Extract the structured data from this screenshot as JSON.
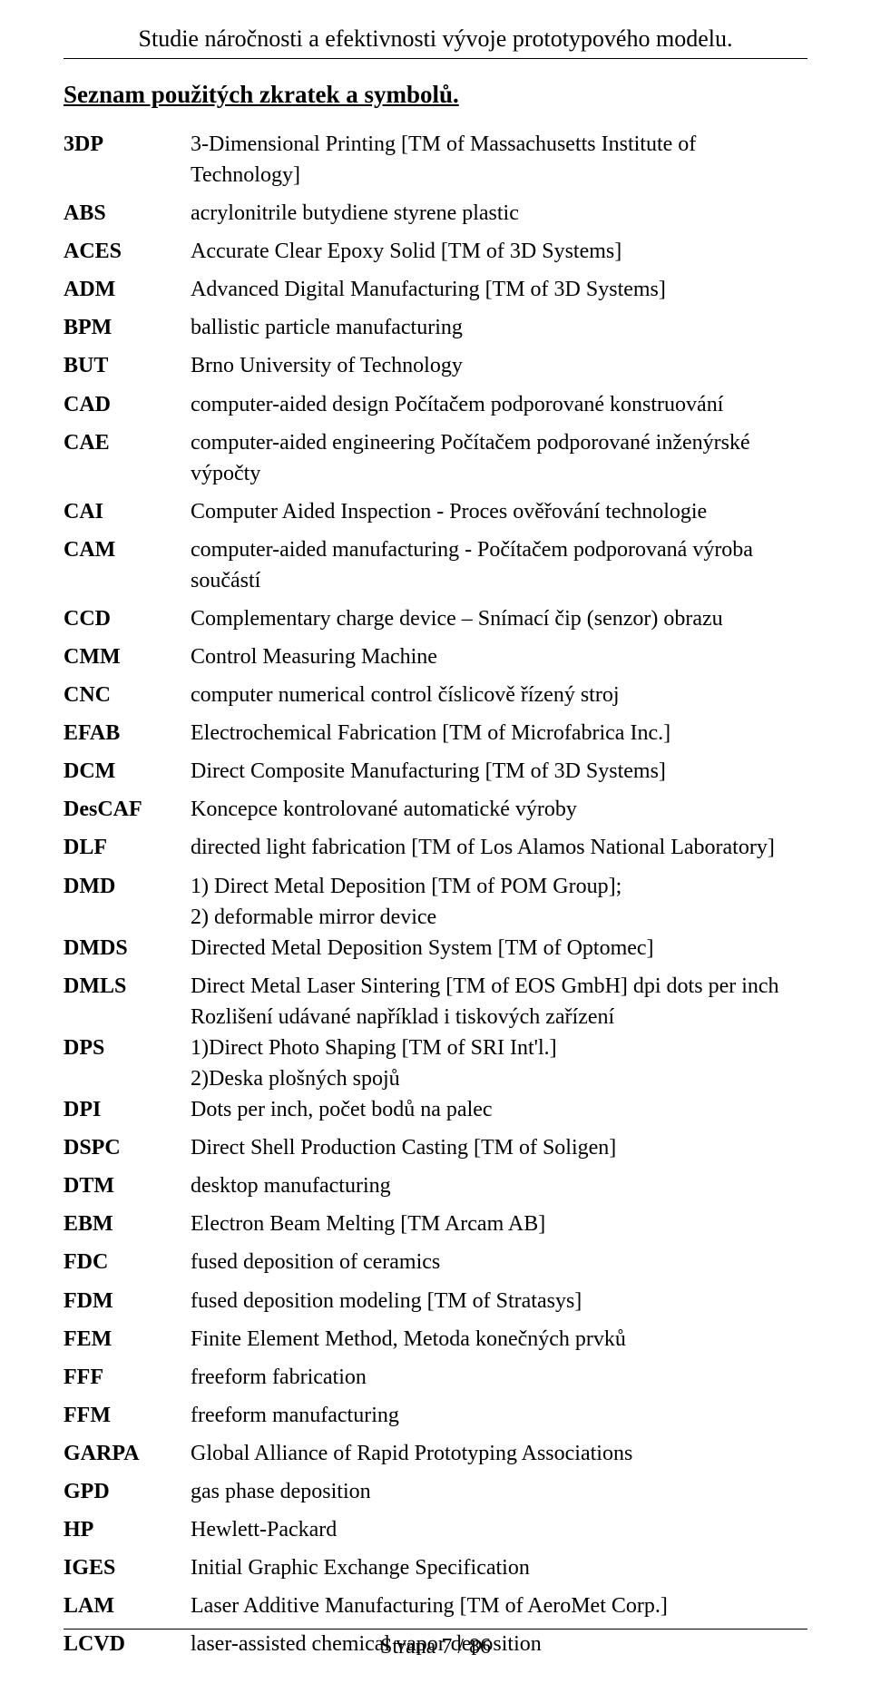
{
  "header": {
    "title": "Studie náročnosti a efektivnosti vývoje prototypového modelu."
  },
  "section": {
    "heading": "Seznam použitých zkratek a symbolů."
  },
  "abbreviations": [
    {
      "code": "3DP",
      "def": "3-Dimensional Printing [TM of Massachusetts Institute of Technology]",
      "extra_space": true
    },
    {
      "code": "ABS",
      "def": "acrylonitrile butydiene styrene plastic",
      "extra_space": true
    },
    {
      "code": "ACES",
      "def": "Accurate Clear Epoxy Solid [TM of 3D Systems]",
      "extra_space": true
    },
    {
      "code": "ADM",
      "def": "Advanced Digital Manufacturing [TM of 3D Systems]",
      "extra_space": true
    },
    {
      "code": "BPM",
      "def": "ballistic particle manufacturing",
      "extra_space": true
    },
    {
      "code": "BUT",
      "def": "Brno University of Technology",
      "extra_space": true
    },
    {
      "code": "CAD",
      "def": "computer-aided design Počítačem podporované konstruování",
      "extra_space": true
    },
    {
      "code": "CAE",
      "def": "computer-aided engineering Počítačem podporované inženýrské výpočty",
      "extra_space": true
    },
    {
      "code": "CAI",
      "def": "Computer Aided Inspection - Proces ověřování technologie",
      "extra_space": true
    },
    {
      "code": "CAM",
      "def": "computer-aided manufacturing - Počítačem podporovaná výroba součástí",
      "extra_space": true
    },
    {
      "code": "CCD",
      "def": "Complementary charge device – Snímací čip (senzor) obrazu",
      "extra_space": true
    },
    {
      "code": "CMM",
      "def": "Control Measuring Machine",
      "extra_space": true
    },
    {
      "code": "CNC",
      "def": "computer numerical control   číslicově řízený stroj",
      "extra_space": true
    },
    {
      "code": "EFAB",
      "def": "Electrochemical Fabrication [TM of Microfabrica Inc.]",
      "extra_space": true
    },
    {
      "code": "DCM",
      "def": "Direct Composite Manufacturing [TM of 3D Systems]",
      "extra_space": true
    },
    {
      "code": "DesCAF",
      "def": "Koncepce kontrolované automatické výroby",
      "extra_space": true
    },
    {
      "code": "DLF",
      "def": "directed light fabrication [TM of Los Alamos National Laboratory]",
      "extra_space": true
    },
    {
      "code": "DMD",
      "def": "1) Direct Metal Deposition [TM of POM Group];\n2) deformable mirror device",
      "extra_space": false
    },
    {
      "code": "DMDS",
      "def": "Directed Metal Deposition System [TM of Optomec]",
      "extra_space": true
    },
    {
      "code": "DMLS",
      "def": "Direct Metal Laser Sintering [TM of EOS GmbH] dpi dots per inch\nRozlišení udávané například i tiskových zařízení",
      "extra_space": false
    },
    {
      "code": "DPS",
      "def": "1)Direct Photo Shaping [TM of SRI Int'l.]\n2)Deska plošných spojů",
      "extra_space": false
    },
    {
      "code": "DPI",
      "def": "Dots per inch,  počet bodů na palec",
      "extra_space": true
    },
    {
      "code": "DSPC",
      "def": "Direct Shell Production Casting [TM of Soligen]",
      "extra_space": true
    },
    {
      "code": "DTM",
      "def": "desktop manufacturing",
      "extra_space": true
    },
    {
      "code": "EBM",
      "def": "Electron Beam Melting [TM Arcam AB]",
      "extra_space": true
    },
    {
      "code": "FDC",
      "def": "fused deposition of ceramics",
      "extra_space": true
    },
    {
      "code": "FDM",
      "def": "fused deposition modeling [TM of Stratasys]",
      "extra_space": true
    },
    {
      "code": "FEM",
      "def": "Finite Element Method, Metoda konečných prvků",
      "extra_space": true
    },
    {
      "code": "FFF",
      "def": "freeform fabrication",
      "extra_space": true
    },
    {
      "code": "FFM",
      "def": "freeform manufacturing",
      "extra_space": true
    },
    {
      "code": "GARPA",
      "def": "Global Alliance of Rapid Prototyping Associations",
      "extra_space": true
    },
    {
      "code": "GPD",
      "def": "gas phase deposition",
      "extra_space": true
    },
    {
      "code": "HP",
      "def": "Hewlett-Packard",
      "extra_space": true
    },
    {
      "code": "IGES",
      "def": "Initial Graphic Exchange Specification",
      "extra_space": true
    },
    {
      "code": "LAM",
      "def": "Laser Additive Manufacturing [TM of AeroMet Corp.]",
      "extra_space": true
    },
    {
      "code": "LCVD",
      "def": "laser-assisted chemical vapor deposition",
      "extra_space": true
    }
  ],
  "footer": {
    "text": "Strana 7 / 86"
  }
}
